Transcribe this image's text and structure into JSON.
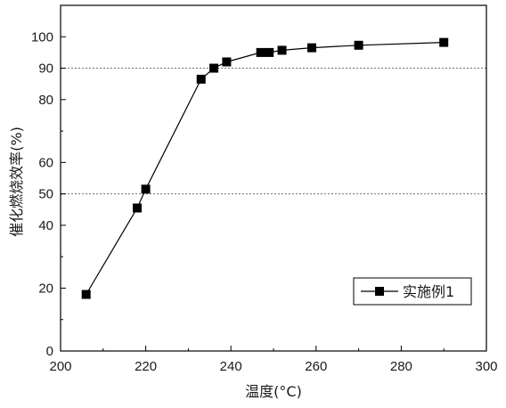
{
  "chart_data": {
    "type": "line",
    "xlabel": "温度(°C)",
    "ylabel": "催化燃烧效率(%)",
    "xlim": [
      200,
      300
    ],
    "ylim": [
      0,
      110
    ],
    "x_ticks": [
      200,
      220,
      240,
      260,
      280,
      300
    ],
    "y_ticks": [
      0,
      20,
      40,
      50,
      60,
      80,
      90,
      100
    ],
    "reference_lines_y": [
      50,
      90
    ],
    "grid": false,
    "legend_position": "bottom-right",
    "series": [
      {
        "name": "实施例1",
        "color": "#000000",
        "marker": "square",
        "x": [
          206,
          218,
          220,
          233,
          236,
          239,
          247,
          249,
          252,
          259,
          270,
          290
        ],
        "y": [
          18,
          45.5,
          51.5,
          86.5,
          90,
          92,
          95,
          95,
          95.7,
          96.5,
          97.3,
          98.2
        ]
      }
    ]
  }
}
